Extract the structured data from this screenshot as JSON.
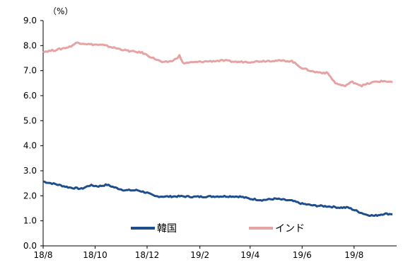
{
  "chart_data": {
    "type": "line",
    "unit_label": "（%）",
    "ylim": [
      0,
      9
    ],
    "yticks": [
      "0.0",
      "1.0",
      "2.0",
      "3.0",
      "4.0",
      "5.0",
      "6.0",
      "7.0",
      "8.0",
      "9.0"
    ],
    "xlim": [
      "2018-08-01",
      "2019-09-20"
    ],
    "xticks": [
      {
        "label": "18/8",
        "date": "2018-08-01"
      },
      {
        "label": "18/10",
        "date": "2018-10-01"
      },
      {
        "label": "18/12",
        "date": "2018-12-01"
      },
      {
        "label": "19/2",
        "date": "2019-02-01"
      },
      {
        "label": "19/4",
        "date": "2019-04-01"
      },
      {
        "label": "19/6",
        "date": "2019-06-01"
      },
      {
        "label": "19/8",
        "date": "2019-08-01"
      }
    ],
    "grid": false,
    "legend_position": "bottom",
    "series": [
      {
        "name": "韓国",
        "color": "#1f4e8c",
        "points": [
          {
            "x": "2018-08-01",
            "y": 2.57
          },
          {
            "x": "2018-08-15",
            "y": 2.47
          },
          {
            "x": "2018-09-01",
            "y": 2.33
          },
          {
            "x": "2018-09-15",
            "y": 2.28
          },
          {
            "x": "2018-09-25",
            "y": 2.42
          },
          {
            "x": "2018-10-05",
            "y": 2.38
          },
          {
            "x": "2018-10-15",
            "y": 2.44
          },
          {
            "x": "2018-10-25",
            "y": 2.32
          },
          {
            "x": "2018-11-05",
            "y": 2.22
          },
          {
            "x": "2018-11-20",
            "y": 2.22
          },
          {
            "x": "2018-12-01",
            "y": 2.12
          },
          {
            "x": "2018-12-10",
            "y": 1.98
          },
          {
            "x": "2018-12-25",
            "y": 1.97
          },
          {
            "x": "2019-01-10",
            "y": 1.98
          },
          {
            "x": "2019-01-25",
            "y": 1.96
          },
          {
            "x": "2019-02-10",
            "y": 1.97
          },
          {
            "x": "2019-02-25",
            "y": 1.98
          },
          {
            "x": "2019-03-10",
            "y": 1.98
          },
          {
            "x": "2019-03-20",
            "y": 1.97
          },
          {
            "x": "2019-04-01",
            "y": 1.88
          },
          {
            "x": "2019-04-15",
            "y": 1.83
          },
          {
            "x": "2019-05-01",
            "y": 1.88
          },
          {
            "x": "2019-05-20",
            "y": 1.8
          },
          {
            "x": "2019-06-01",
            "y": 1.68
          },
          {
            "x": "2019-06-15",
            "y": 1.61
          },
          {
            "x": "2019-07-01",
            "y": 1.58
          },
          {
            "x": "2019-07-15",
            "y": 1.53
          },
          {
            "x": "2019-07-25",
            "y": 1.53
          },
          {
            "x": "2019-08-05",
            "y": 1.38
          },
          {
            "x": "2019-08-15",
            "y": 1.25
          },
          {
            "x": "2019-08-25",
            "y": 1.2
          },
          {
            "x": "2019-09-05",
            "y": 1.28
          },
          {
            "x": "2019-09-15",
            "y": 1.27
          }
        ]
      },
      {
        "name": "インド",
        "color": "#e6a3a3",
        "points": [
          {
            "x": "2018-08-01",
            "y": 7.75
          },
          {
            "x": "2018-08-15",
            "y": 7.82
          },
          {
            "x": "2018-09-01",
            "y": 7.95
          },
          {
            "x": "2018-09-10",
            "y": 8.12
          },
          {
            "x": "2018-09-25",
            "y": 8.05
          },
          {
            "x": "2018-10-10",
            "y": 8.02
          },
          {
            "x": "2018-10-25",
            "y": 7.9
          },
          {
            "x": "2018-11-10",
            "y": 7.78
          },
          {
            "x": "2018-11-25",
            "y": 7.72
          },
          {
            "x": "2018-12-05",
            "y": 7.55
          },
          {
            "x": "2018-12-20",
            "y": 7.32
          },
          {
            "x": "2019-01-01",
            "y": 7.4
          },
          {
            "x": "2019-01-08",
            "y": 7.6
          },
          {
            "x": "2019-01-12",
            "y": 7.3
          },
          {
            "x": "2019-02-01",
            "y": 7.35
          },
          {
            "x": "2019-02-15",
            "y": 7.38
          },
          {
            "x": "2019-03-01",
            "y": 7.4
          },
          {
            "x": "2019-03-15",
            "y": 7.35
          },
          {
            "x": "2019-04-01",
            "y": 7.35
          },
          {
            "x": "2019-04-15",
            "y": 7.38
          },
          {
            "x": "2019-05-01",
            "y": 7.4
          },
          {
            "x": "2019-05-20",
            "y": 7.38
          },
          {
            "x": "2019-06-01",
            "y": 7.1
          },
          {
            "x": "2019-06-15",
            "y": 6.95
          },
          {
            "x": "2019-07-01",
            "y": 6.9
          },
          {
            "x": "2019-07-10",
            "y": 6.5
          },
          {
            "x": "2019-07-20",
            "y": 6.38
          },
          {
            "x": "2019-07-30",
            "y": 6.55
          },
          {
            "x": "2019-08-10",
            "y": 6.4
          },
          {
            "x": "2019-08-25",
            "y": 6.55
          },
          {
            "x": "2019-09-05",
            "y": 6.58
          },
          {
            "x": "2019-09-15",
            "y": 6.55
          }
        ]
      }
    ]
  }
}
